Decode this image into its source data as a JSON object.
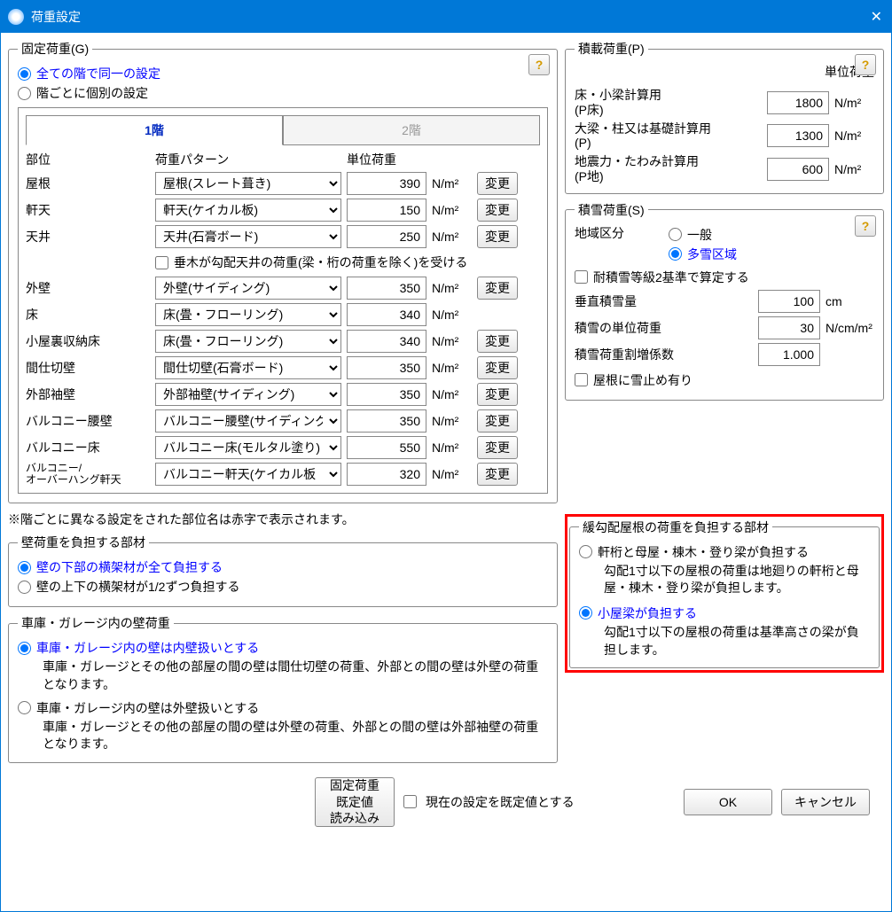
{
  "window": {
    "title": "荷重設定"
  },
  "G": {
    "legend": "固定荷重(G)",
    "r1": "全ての階で同一の設定",
    "r2": "階ごとに個別の設定",
    "tab1": "1階",
    "tab2": "2階",
    "hdr_part": "部位",
    "hdr_pattern": "荷重パターン",
    "hdr_unit": "単位荷重",
    "change": "変更",
    "nm2": "N/m²",
    "rows": [
      {
        "part": "屋根",
        "pattern": "屋根(スレート葺き)",
        "val": "390",
        "btn": true
      },
      {
        "part": "軒天",
        "pattern": "軒天(ケイカル板)",
        "val": "150",
        "btn": true
      },
      {
        "part": "天井",
        "pattern": "天井(石膏ボード)",
        "val": "250",
        "btn": true
      }
    ],
    "chk_rafter": "垂木が勾配天井の荷重(梁・桁の荷重を除く)を受ける",
    "rows2": [
      {
        "part": "外壁",
        "pattern": "外壁(サイディング)",
        "val": "350",
        "btn": true
      },
      {
        "part": "床",
        "pattern": "床(畳・フローリング)",
        "val": "340",
        "btn": false
      },
      {
        "part": "小屋裏収納床",
        "pattern": "床(畳・フローリング)",
        "val": "340",
        "btn": true
      },
      {
        "part": "間仕切壁",
        "pattern": "間仕切壁(石膏ボード)",
        "val": "350",
        "btn": true
      },
      {
        "part": "外部袖壁",
        "pattern": "外部袖壁(サイディング)",
        "val": "350",
        "btn": true
      },
      {
        "part": "バルコニー腰壁",
        "pattern": "バルコニー腰壁(サイディング",
        "val": "350",
        "btn": true
      },
      {
        "part": "バルコニー床",
        "pattern": "バルコニー床(モルタル塗り)",
        "val": "550",
        "btn": true
      },
      {
        "part": "バルコニー/\nオーバーハング軒天",
        "pattern": "バルコニー軒天(ケイカル板",
        "val": "320",
        "btn": true
      }
    ],
    "note": "※階ごとに異なる設定をされた部位名は赤字で表示されます。"
  },
  "wall": {
    "legend": "壁荷重を負担する部材",
    "r1": "壁の下部の横架材が全て負担する",
    "r2": "壁の上下の横架材が1/2ずつ負担する"
  },
  "garage": {
    "legend": "車庫・ガレージ内の壁荷重",
    "r1": "車庫・ガレージ内の壁は内壁扱いとする",
    "d1": "車庫・ガレージとその他の部屋の間の壁は間仕切壁の荷重、外部との間の壁は外壁の荷重となります。",
    "r2": "車庫・ガレージ内の壁は外壁扱いとする",
    "d2": "車庫・ガレージとその他の部屋の間の壁は外壁の荷重、外部との間の壁は外部袖壁の荷重となります。"
  },
  "P": {
    "legend": "積載荷重(P)",
    "hdr": "単位荷重",
    "nm2": "N/m²",
    "l1": "床・小梁計算用\n(P床)",
    "v1": "1800",
    "l2": "大梁・柱又は基礎計算用\n(P)",
    "v2": "1300",
    "l3": "地震力・たわみ計算用\n(P地)",
    "v3": "600"
  },
  "S": {
    "legend": "積雪荷重(S)",
    "region_lbl": "地域区分",
    "region_a": "一般",
    "region_b": "多雪区域",
    "chk1": "耐積雪等級2基準で算定する",
    "l1": "垂直積雪量",
    "v1": "100",
    "u1": "cm",
    "l2": "積雪の単位荷重",
    "v2": "30",
    "u2": "N/cm/m²",
    "l3": "積雪荷重割増係数",
    "v3": "1.000",
    "chk2": "屋根に雪止め有り"
  },
  "roof": {
    "legend": "緩勾配屋根の荷重を負担する部材",
    "r1": "軒桁と母屋・棟木・登り梁が負担する",
    "d1": "勾配1寸以下の屋根の荷重は地廻りの軒桁と母屋・棟木・登り梁が負担します。",
    "r2": "小屋梁が負担する",
    "d2": "勾配1寸以下の屋根の荷重は基準高さの梁が負担します。"
  },
  "footer": {
    "defaults": "固定荷重\n既定値\n読み込み",
    "chk": "現在の設定を既定値とする",
    "ok": "OK",
    "cancel": "キャンセル"
  }
}
